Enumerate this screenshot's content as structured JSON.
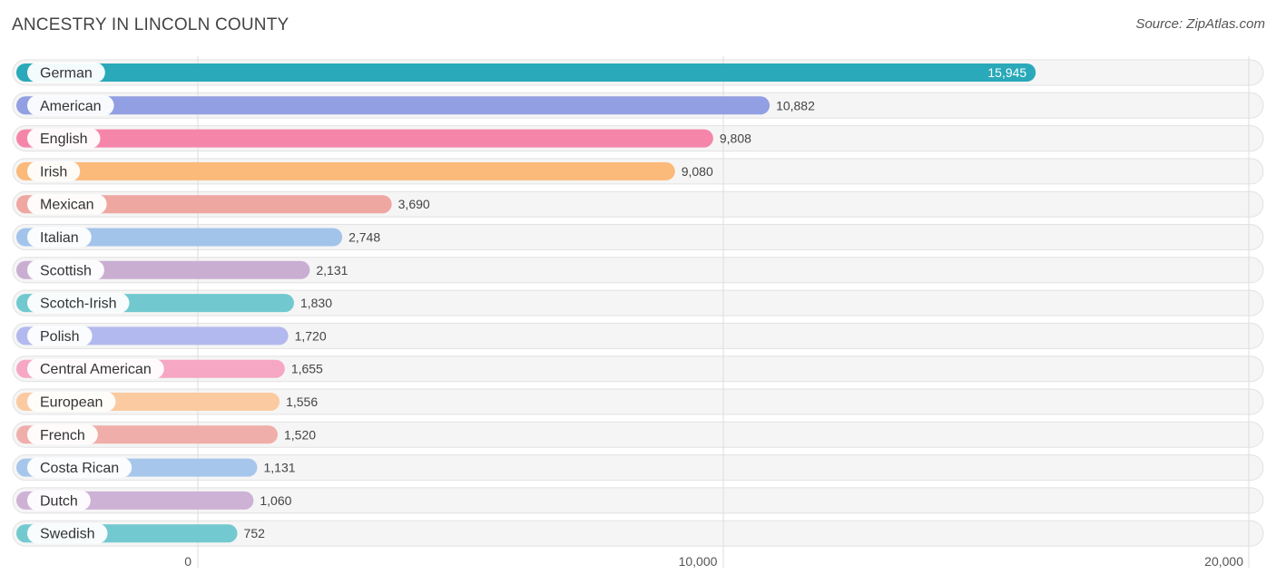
{
  "header": {
    "title": "ANCESTRY IN LINCOLN COUNTY",
    "source": "Source: ZipAtlas.com"
  },
  "chart_data": {
    "type": "bar",
    "orientation": "horizontal",
    "title": "ANCESTRY IN LINCOLN COUNTY",
    "xlabel": "",
    "ylabel": "",
    "xlim": [
      0,
      20000
    ],
    "ticks": [
      0,
      10000,
      20000
    ],
    "tick_labels": [
      "0",
      "10,000",
      "20,000"
    ],
    "grid": true,
    "legend": "none",
    "categories": [
      "German",
      "American",
      "English",
      "Irish",
      "Mexican",
      "Italian",
      "Scottish",
      "Scotch-Irish",
      "Polish",
      "Central American",
      "European",
      "French",
      "Costa Rican",
      "Dutch",
      "Swedish"
    ],
    "values": [
      15945,
      10882,
      9808,
      9080,
      3690,
      2748,
      2131,
      1830,
      1720,
      1655,
      1556,
      1520,
      1131,
      1060,
      752
    ],
    "value_labels": [
      "15,945",
      "10,882",
      "9,808",
      "9,080",
      "3,690",
      "2,748",
      "2,131",
      "1,830",
      "1,720",
      "1,655",
      "1,556",
      "1,520",
      "1,131",
      "1,060",
      "752"
    ],
    "colors": [
      "#29a9b9",
      "#929fe2",
      "#f585a9",
      "#fbb97a",
      "#eea7a1",
      "#a2c4ea",
      "#c9aed2",
      "#71c8cf",
      "#b2b9ee",
      "#f6a7c3",
      "#fccaa0",
      "#f0aeaa",
      "#a7c6ec",
      "#cdb2d6",
      "#73c9d0"
    ]
  }
}
